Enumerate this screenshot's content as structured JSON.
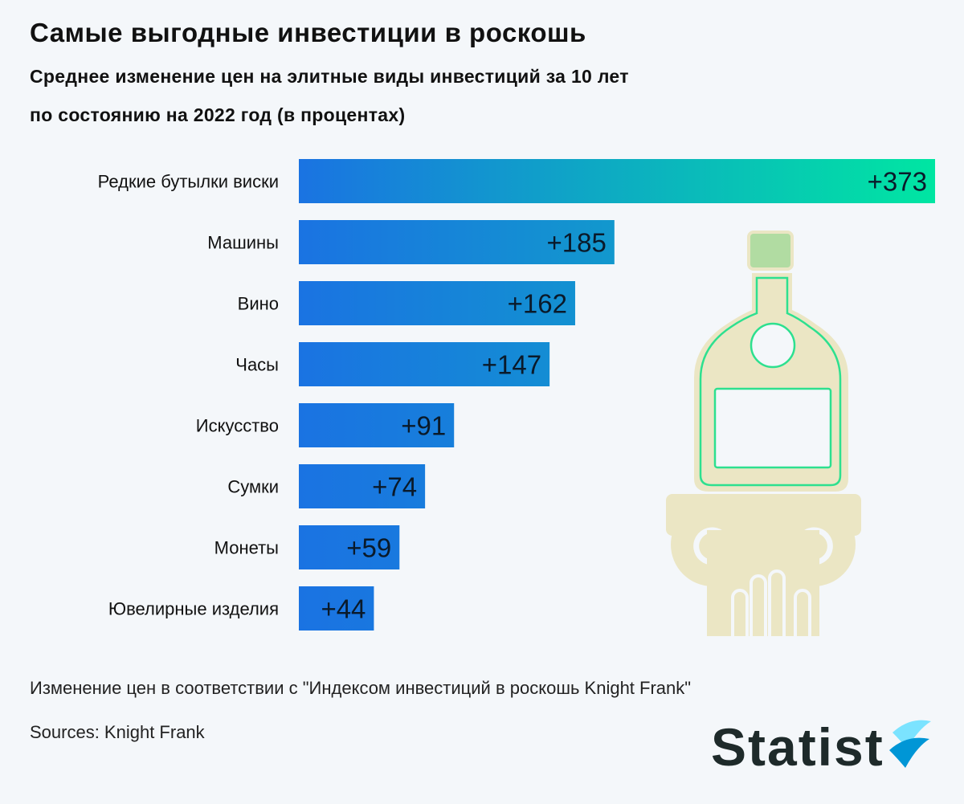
{
  "header": {
    "title": "Самые выгодные инвестиции в роскошь",
    "subtitle_line1": "Среднее изменение цен на элитные виды инвестиций за 10 лет",
    "subtitle_line2": "по состоянию на 2022 год (в процентах)"
  },
  "chart_data": {
    "type": "bar",
    "orientation": "horizontal",
    "categories": [
      "Редкие бутылки виски",
      "Машины",
      "Вино",
      "Часы",
      "Искусство",
      "Сумки",
      "Монеты",
      "Ювелирные изделия"
    ],
    "values": [
      373,
      185,
      162,
      147,
      91,
      74,
      59,
      44
    ],
    "value_labels": [
      "+373",
      "+185",
      "+162",
      "+147",
      "+91",
      "+74",
      "+59",
      "+44"
    ],
    "xlim": [
      0,
      373
    ],
    "grid": false,
    "legend": "none",
    "colors": {
      "bar_start": "#1a73e2",
      "bar_end": "#00e6a2",
      "label": "#0a1a2a"
    }
  },
  "illustration": {
    "icon": "bottle-on-column-icon",
    "colors": {
      "fill": "#ebe6c4",
      "outline": "#2de08f",
      "cap": "#b1dca2"
    }
  },
  "footer": {
    "note": "Изменение цен в соответствии с \"Индексом инвестиций в роскошь Knight Frank\"",
    "source": "Sources: Knight Frank"
  },
  "brand": {
    "logo_text": "Statist",
    "logo_icon": "statista-wave-icon",
    "colors": {
      "text": "#1e2a2a",
      "mark_light": "#7be3ff",
      "mark_dark": "#0096d6"
    }
  }
}
